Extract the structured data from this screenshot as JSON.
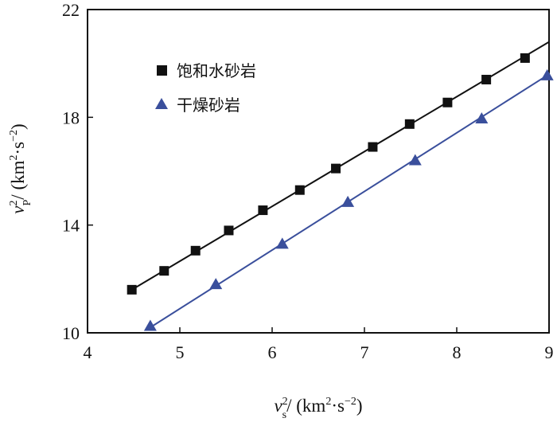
{
  "chart_data": {
    "type": "scatter",
    "title": "",
    "xlim": [
      4,
      9
    ],
    "ylim": [
      10,
      22
    ],
    "x_ticks": [
      4,
      5,
      6,
      7,
      8,
      9
    ],
    "y_ticks": [
      10,
      14,
      18,
      22
    ],
    "grid": false,
    "legend_position": "top-left",
    "xlabel": {
      "main": "v",
      "sub": "s",
      "sup": "2",
      "unit_open": "/ (km",
      "unit_sup1": "2",
      "unit_mid": "·s",
      "unit_sup2": "−2",
      "unit_close": ")"
    },
    "ylabel": {
      "main": "v",
      "sub": "P",
      "sup": "2",
      "unit_open": "/ (km",
      "unit_sup1": "2",
      "unit_mid": "·s",
      "unit_sup2": "−2",
      "unit_close": ")"
    },
    "series": [
      {
        "name": "饱和水砂岩",
        "marker": "square",
        "color": "#111111",
        "line_color": "#111111",
        "x": [
          4.48,
          4.83,
          5.17,
          5.53,
          5.9,
          6.3,
          6.69,
          7.09,
          7.49,
          7.9,
          8.32,
          8.74
        ],
        "y": [
          11.6,
          12.3,
          13.05,
          13.8,
          14.55,
          15.3,
          16.1,
          16.9,
          17.75,
          18.55,
          19.4,
          20.2
        ],
        "fit_x": [
          4.48,
          9.0
        ],
        "fit_y": [
          11.6,
          20.8
        ]
      },
      {
        "name": "干燥砂岩",
        "marker": "triangle",
        "color": "#3a4f9c",
        "line_color": "#3a4f9c",
        "x": [
          4.68,
          5.39,
          6.11,
          6.82,
          7.55,
          8.27,
          8.98
        ],
        "y": [
          10.25,
          11.8,
          13.3,
          14.85,
          16.4,
          17.95,
          19.55
        ],
        "fit_x": [
          4.68,
          9.0
        ],
        "fit_y": [
          10.2,
          19.6
        ]
      }
    ]
  }
}
